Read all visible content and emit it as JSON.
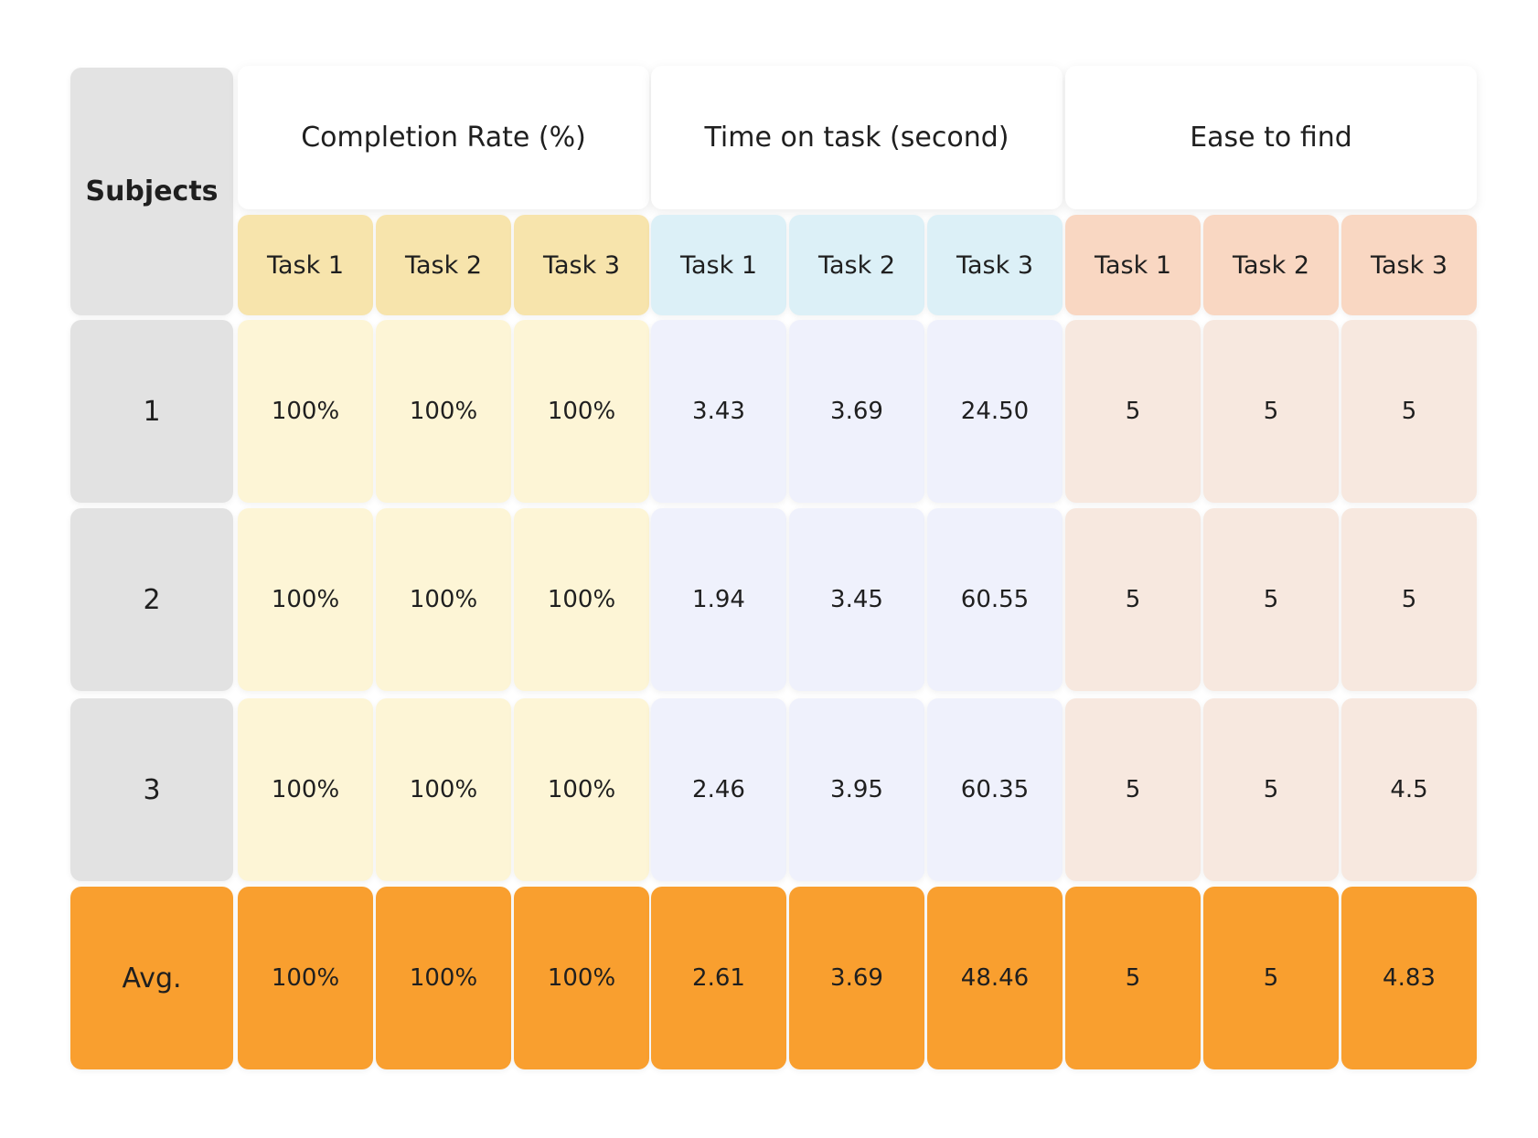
{
  "chart_data": {
    "type": "table",
    "row_header_label": "Subjects",
    "groups": [
      {
        "label": "Completion Rate (%)",
        "tasks": [
          "Task 1",
          "Task 2",
          "Task 3"
        ]
      },
      {
        "label": "Time on task (second)",
        "tasks": [
          "Task 1",
          "Task 2",
          "Task 3"
        ]
      },
      {
        "label": "Ease to find",
        "tasks": [
          "Task 1",
          "Task 2",
          "Task 3"
        ]
      }
    ],
    "rows": [
      {
        "subject": "1",
        "values": [
          "100%",
          "100%",
          "100%",
          "3.43",
          "3.69",
          "24.50",
          "5",
          "5",
          "5"
        ]
      },
      {
        "subject": "2",
        "values": [
          "100%",
          "100%",
          "100%",
          "1.94",
          "3.45",
          "60.55",
          "5",
          "5",
          "5"
        ]
      },
      {
        "subject": "3",
        "values": [
          "100%",
          "100%",
          "100%",
          "2.46",
          "3.95",
          "60.35",
          "5",
          "5",
          "4.5"
        ]
      }
    ],
    "average": {
      "label": "Avg.",
      "values": [
        "100%",
        "100%",
        "100%",
        "2.61",
        "3.69",
        "48.46",
        "5",
        "5",
        "4.83"
      ]
    }
  },
  "colors": {
    "subjects_column": "#e2e2e2",
    "completion_header": "#f7e4ac",
    "completion_cells": "#fdf5d6",
    "time_header": "#dcf0f7",
    "time_cells": "#eff1fc",
    "ease_header": "#f9d7c2",
    "ease_cells": "#f7e8df",
    "average_row": "#f99f2f"
  }
}
